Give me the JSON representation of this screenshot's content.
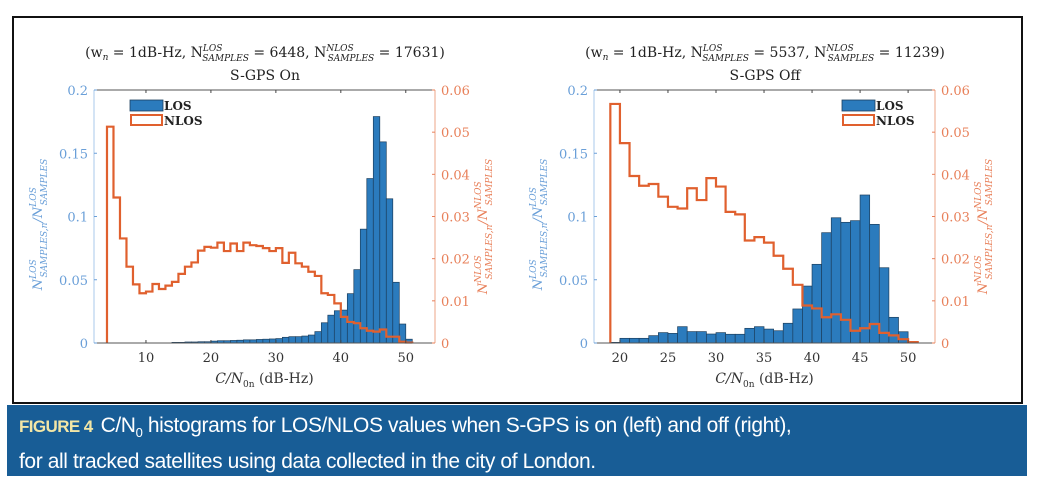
{
  "caption": {
    "figure_label": "FIGURE 4",
    "line1_pre": "C/N",
    "line1_sub": "0",
    "line1_post": " histograms for LOS/NLOS values when S-GPS is on (left) and off (right),",
    "line2": "for all tracked satellites using data collected in the city of London."
  },
  "colors": {
    "los_fill": "#2b7bbd",
    "los_edge": "#1c3f5e",
    "nlos_line": "#e0602e",
    "left_axis": "#6a9fd8",
    "right_axis": "#e8805a",
    "caption_bg": "#185d96",
    "caption_label": "#f2e6a6"
  },
  "chart_data": [
    {
      "type": "bar",
      "title": "S-GPS On",
      "subtitle": "(w_n = 1dB-Hz, N^LOS_SAMPLES = 6448, N^NLOS_SAMPLES = 17631)",
      "subtitle_parts": {
        "prefix": "(w",
        "n": "n",
        "eq1": " = 1dB-Hz, N",
        "los_sup": "LOS",
        "los_sub": "SAMPLES",
        "eq2": " = 6448, N",
        "nlos_sup": "NLOS",
        "nlos_sub": "SAMPLES",
        "eq3": " = 17631)"
      },
      "xlabel": "C/N0n (dB-Hz)",
      "ylabel_left": "N^LOS_SAMPLES,n / N^LOS_SAMPLES",
      "ylabel_right": "N^NLOS_SAMPLES,n / N^NLOS_SAMPLES",
      "xlim": [
        2,
        54.5
      ],
      "ylim_left": [
        0,
        0.2
      ],
      "ylim_right": [
        0,
        0.06
      ],
      "xticks": [
        10,
        20,
        30,
        40,
        50
      ],
      "yticks_left": [
        "0",
        "0.05",
        "0.1",
        "0.15",
        "0.2"
      ],
      "yticks_left_values": [
        0,
        0.05,
        0.1,
        0.15,
        0.2
      ],
      "yticks_right": [
        "0",
        "0.01",
        "0.02",
        "0.03",
        "0.04",
        "0.05",
        "0.06"
      ],
      "yticks_right_values": [
        0,
        0.01,
        0.02,
        0.03,
        0.04,
        0.05,
        0.06
      ],
      "legend": {
        "entries": [
          "LOS",
          "NLOS"
        ],
        "placement": "top-left"
      },
      "bin_width": 1,
      "series": [
        {
          "name": "LOS",
          "axis": "left",
          "style": "bar",
          "bin_start": 14,
          "values": [
            0.0005,
            0.0005,
            0.0008,
            0.0008,
            0.001,
            0.001,
            0.0015,
            0.0018,
            0.0018,
            0.002,
            0.0022,
            0.0025,
            0.0025,
            0.0028,
            0.003,
            0.0032,
            0.0035,
            0.0045,
            0.005,
            0.005,
            0.0055,
            0.0063,
            0.009,
            0.016,
            0.022,
            0.0255,
            0.026,
            0.039,
            0.058,
            0.09,
            0.13,
            0.179,
            0.159,
            0.114,
            0.048,
            0.015,
            0.003
          ]
        },
        {
          "name": "NLOS",
          "axis": "right",
          "style": "stairs",
          "bin_start": 4,
          "values": [
            0.0513,
            0.0345,
            0.0248,
            0.0181,
            0.0139,
            0.0118,
            0.0122,
            0.014,
            0.0128,
            0.0136,
            0.0145,
            0.0164,
            0.0181,
            0.0191,
            0.0219,
            0.0228,
            0.0226,
            0.0238,
            0.0218,
            0.0236,
            0.0218,
            0.0238,
            0.0232,
            0.023,
            0.0225,
            0.0218,
            0.0225,
            0.019,
            0.0214,
            0.0189,
            0.0181,
            0.0169,
            0.0159,
            0.0118,
            0.0114,
            0.0094,
            0.0062,
            0.005,
            0.0047,
            0.0035,
            0.0029,
            0.0027,
            0.0032,
            0.0015,
            0.0015,
            0.0003,
            0.0001
          ]
        }
      ]
    },
    {
      "type": "bar",
      "title": "S-GPS Off",
      "subtitle": "(w_n = 1dB-Hz, N^LOS_SAMPLES = 5537, N^NLOS_SAMPLES = 11239)",
      "subtitle_parts": {
        "prefix": "(w",
        "n": "n",
        "eq1": " = 1dB-Hz, N",
        "los_sup": "LOS",
        "los_sub": "SAMPLES",
        "eq2": " = 5537, N",
        "nlos_sup": "NLOS",
        "nlos_sub": "SAMPLES",
        "eq3": " = 11239)"
      },
      "xlabel": "C/N0n (dB-Hz)",
      "ylabel_left": "N^LOS_SAMPLES,n / N^LOS_SAMPLES",
      "ylabel_right": "N^NLOS_SAMPLES,n / N^NLOS_SAMPLES",
      "xlim": [
        17.3,
        52.8
      ],
      "ylim_left": [
        0,
        0.2
      ],
      "ylim_right": [
        0,
        0.06
      ],
      "xticks": [
        20,
        25,
        30,
        35,
        40,
        45,
        50
      ],
      "yticks_left": [
        "0",
        "0.05",
        "0.1",
        "0.15",
        "0.2"
      ],
      "yticks_left_values": [
        0,
        0.05,
        0.1,
        0.15,
        0.2
      ],
      "yticks_right": [
        "0",
        "0.01",
        "0.02",
        "0.03",
        "0.04",
        "0.05",
        "0.06"
      ],
      "yticks_right_values": [
        0,
        0.01,
        0.02,
        0.03,
        0.04,
        0.05,
        0.06
      ],
      "legend": {
        "entries": [
          "LOS",
          "NLOS"
        ],
        "placement": "top-right"
      },
      "bin_width": 1,
      "series": [
        {
          "name": "LOS",
          "axis": "left",
          "style": "bar",
          "bin_start": 19,
          "values": [
            0.0005,
            0.0037,
            0.0037,
            0.0037,
            0.0058,
            0.0082,
            0.0076,
            0.0129,
            0.009,
            0.009,
            0.0071,
            0.0082,
            0.0069,
            0.0069,
            0.0116,
            0.0129,
            0.011,
            0.0097,
            0.0156,
            0.0269,
            0.045,
            0.0622,
            0.0872,
            0.099,
            0.0954,
            0.0967,
            0.117,
            0.0938,
            0.0595,
            0.0203,
            0.0089,
            0.0
          ]
        },
        {
          "name": "NLOS",
          "axis": "right",
          "style": "stairs",
          "bin_start": 19,
          "values": [
            0.0567,
            0.0474,
            0.0396,
            0.0373,
            0.0377,
            0.0347,
            0.0323,
            0.0319,
            0.0367,
            0.0339,
            0.0391,
            0.0371,
            0.0311,
            0.0305,
            0.0243,
            0.0251,
            0.0238,
            0.0207,
            0.0176,
            0.0138,
            0.0089,
            0.0082,
            0.0061,
            0.0068,
            0.0055,
            0.0029,
            0.0035,
            0.0045,
            0.0024,
            0.0018,
            0.0009,
            0.0002
          ]
        }
      ]
    }
  ]
}
